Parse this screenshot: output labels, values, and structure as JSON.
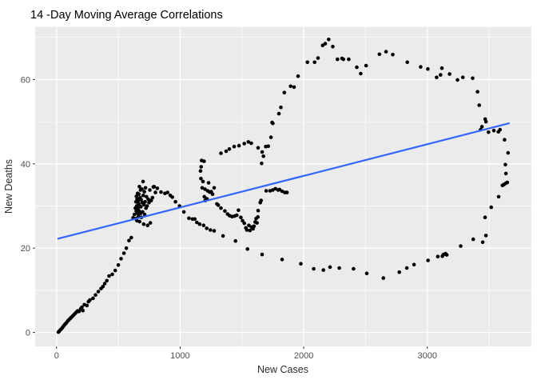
{
  "chart_data": {
    "type": "scatter",
    "title": "14 -Day Moving Average Correlations",
    "xlabel": "New Cases",
    "ylabel": "New Deaths",
    "x_ticks": [
      0,
      1000,
      2000,
      3000
    ],
    "x_tick_labels": [
      "0",
      "1000",
      "2000",
      "3000"
    ],
    "x_minor_ticks": [
      500,
      1500,
      2500,
      3500
    ],
    "y_ticks": [
      0,
      20,
      40,
      60
    ],
    "y_tick_labels": [
      "0",
      "20",
      "40",
      "60"
    ],
    "y_minor_ticks": [
      10,
      30,
      50,
      70
    ],
    "xlim": [
      -173,
      3842
    ],
    "ylim": [
      -3.3,
      72.5
    ],
    "grid": "on",
    "legend": "none",
    "colors": {
      "panel_bg": "#EBEBEB",
      "grid": "#FFFFFF",
      "point": "#000000",
      "trend_line": "#3366FF",
      "tick_label": "#4D4D4D",
      "axis_title": "#2B2B2B",
      "title": "#000000"
    },
    "trend": {
      "x": [
        13,
        3660
      ],
      "y": [
        22.25,
        49.6
      ]
    },
    "points": [
      [
        15,
        0.1
      ],
      [
        22,
        0.3
      ],
      [
        30,
        0.6
      ],
      [
        38,
        0.8
      ],
      [
        46,
        1.1
      ],
      [
        54,
        1.4
      ],
      [
        62,
        1.7
      ],
      [
        70,
        2.0
      ],
      [
        80,
        2.3
      ],
      [
        90,
        2.7
      ],
      [
        100,
        3.0
      ],
      [
        110,
        3.3
      ],
      [
        120,
        3.6
      ],
      [
        130,
        3.9
      ],
      [
        140,
        4.2
      ],
      [
        150,
        4.5
      ],
      [
        160,
        4.8
      ],
      [
        170,
        5.1
      ],
      [
        182,
        5.0
      ],
      [
        195,
        5.6
      ],
      [
        205,
        6.0
      ],
      [
        213,
        5.2
      ],
      [
        225,
        6.6
      ],
      [
        246,
        6.4
      ],
      [
        258,
        7.3
      ],
      [
        270,
        7.7
      ],
      [
        295,
        8.1
      ],
      [
        315,
        8.9
      ],
      [
        338,
        9.7
      ],
      [
        360,
        10.4
      ],
      [
        375,
        10.9
      ],
      [
        390,
        11.6
      ],
      [
        407,
        12.3
      ],
      [
        425,
        13.4
      ],
      [
        451,
        13.8
      ],
      [
        475,
        14.7
      ],
      [
        500,
        16.0
      ],
      [
        522,
        17.5
      ],
      [
        545,
        18.8
      ],
      [
        565,
        20.0
      ],
      [
        586,
        21.8
      ],
      [
        605,
        22.5
      ],
      [
        619,
        27.2
      ],
      [
        630,
        28.0
      ],
      [
        638,
        29.5
      ],
      [
        640,
        27.0
      ],
      [
        642,
        31.0
      ],
      [
        645,
        28.8
      ],
      [
        646,
        32.3
      ],
      [
        648,
        30.0
      ],
      [
        650,
        26.5
      ],
      [
        652,
        31.7
      ],
      [
        655,
        28.3
      ],
      [
        656,
        33.0
      ],
      [
        658,
        29.3
      ],
      [
        660,
        31.2
      ],
      [
        662,
        27.5
      ],
      [
        664,
        30.5
      ],
      [
        666,
        32.8
      ],
      [
        668,
        28.8
      ],
      [
        670,
        34.6
      ],
      [
        672,
        26.3
      ],
      [
        674,
        30.0
      ],
      [
        676,
        32.0
      ],
      [
        678,
        28.2
      ],
      [
        680,
        33.8
      ],
      [
        682,
        29.8
      ],
      [
        684,
        31.5
      ],
      [
        686,
        27.3
      ],
      [
        690,
        34.0
      ],
      [
        693,
        30.8
      ],
      [
        696,
        28.6
      ],
      [
        700,
        35.8
      ],
      [
        702,
        32.5
      ],
      [
        705,
        25.7
      ],
      [
        707,
        30.3
      ],
      [
        710,
        33.4
      ],
      [
        713,
        28.0
      ],
      [
        716,
        31.0
      ],
      [
        720,
        34.3
      ],
      [
        724,
        29.5
      ],
      [
        728,
        32.2
      ],
      [
        733,
        30.0
      ],
      [
        737,
        25.4
      ],
      [
        742,
        31.6
      ],
      [
        748,
        30.8
      ],
      [
        755,
        33.8
      ],
      [
        759,
        26.0
      ],
      [
        766,
        31.3
      ],
      [
        776,
        32.0
      ],
      [
        783,
        34.5
      ],
      [
        789,
        34.6
      ],
      [
        800,
        33.2
      ],
      [
        815,
        34.2
      ],
      [
        845,
        33.3
      ],
      [
        877,
        33.0
      ],
      [
        898,
        33.2
      ],
      [
        920,
        32.5
      ],
      [
        937,
        32.1
      ],
      [
        962,
        31.0
      ],
      [
        995,
        30.0
      ],
      [
        1030,
        28.6
      ],
      [
        1071,
        27.1
      ],
      [
        1100,
        26.9
      ],
      [
        1118,
        26.9
      ],
      [
        1135,
        26.1
      ],
      [
        1158,
        25.7
      ],
      [
        1190,
        25.4
      ],
      [
        1215,
        24.7
      ],
      [
        1245,
        24.3
      ],
      [
        1275,
        24.1
      ],
      [
        1168,
        36.5
      ],
      [
        1178,
        34.3
      ],
      [
        1185,
        35.8
      ],
      [
        1196,
        32.2
      ],
      [
        1200,
        34.0
      ],
      [
        1203,
        31.3
      ],
      [
        1217,
        31.7
      ],
      [
        1222,
        33.6
      ],
      [
        1230,
        35.5
      ],
      [
        1239,
        33.3
      ],
      [
        1252,
        33.4
      ],
      [
        1262,
        32.8
      ],
      [
        1275,
        34.3
      ],
      [
        1297,
        30.5
      ],
      [
        1165,
        38.3
      ],
      [
        1170,
        39.3
      ],
      [
        1174,
        40.8
      ],
      [
        1194,
        40.6
      ],
      [
        1330,
        42.5
      ],
      [
        1372,
        43.0
      ],
      [
        1398,
        43.5
      ],
      [
        1437,
        44.1
      ],
      [
        1476,
        44.3
      ],
      [
        1519,
        44.8
      ],
      [
        1552,
        45.2
      ],
      [
        1576,
        44.9
      ],
      [
        1631,
        43.8
      ],
      [
        1659,
        40.1
      ],
      [
        1664,
        42.8
      ],
      [
        1674,
        41.8
      ],
      [
        1692,
        44.1
      ],
      [
        1713,
        44.2
      ],
      [
        1735,
        46.3
      ],
      [
        1744,
        49.8
      ],
      [
        1750,
        49.6
      ],
      [
        1799,
        51.9
      ],
      [
        1815,
        53.4
      ],
      [
        1843,
        56.9
      ],
      [
        1894,
        58.4
      ],
      [
        1922,
        58.2
      ],
      [
        1954,
        60.8
      ],
      [
        2030,
        64.1
      ],
      [
        2088,
        64.1
      ],
      [
        2116,
        65.1
      ],
      [
        2153,
        68.1
      ],
      [
        2174,
        68.5
      ],
      [
        2202,
        69.5
      ],
      [
        2235,
        67.8
      ],
      [
        2273,
        64.8
      ],
      [
        2310,
        65.0
      ],
      [
        2321,
        64.8
      ],
      [
        2364,
        64.8
      ],
      [
        2429,
        62.9
      ],
      [
        2461,
        61.4
      ],
      [
        2504,
        63.3
      ],
      [
        2612,
        66.0
      ],
      [
        2666,
        66.6
      ],
      [
        2720,
        65.9
      ],
      [
        2838,
        64.1
      ],
      [
        2946,
        63.0
      ],
      [
        3004,
        62.5
      ],
      [
        3075,
        60.5
      ],
      [
        3107,
        61.1
      ],
      [
        3118,
        62.7
      ],
      [
        3180,
        61.3
      ],
      [
        3244,
        59.9
      ],
      [
        3287,
        60.5
      ],
      [
        3367,
        60.3
      ],
      [
        3406,
        57.1
      ],
      [
        3420,
        53.9
      ],
      [
        3431,
        48.1
      ],
      [
        3442,
        48.8
      ],
      [
        3468,
        50.6
      ],
      [
        3474,
        50.0
      ],
      [
        3495,
        47.5
      ],
      [
        3538,
        47.9
      ],
      [
        3575,
        47.6
      ],
      [
        3588,
        48.1
      ],
      [
        3625,
        45.7
      ],
      [
        3653,
        42.6
      ],
      [
        3631,
        39.8
      ],
      [
        3636,
        37.7
      ],
      [
        3608,
        34.9
      ],
      [
        3620,
        35.1
      ],
      [
        3636,
        35.4
      ],
      [
        3647,
        35.6
      ],
      [
        3577,
        32.2
      ],
      [
        3517,
        29.7
      ],
      [
        3467,
        27.3
      ],
      [
        3474,
        23.0
      ],
      [
        3448,
        21.4
      ],
      [
        3371,
        22.1
      ],
      [
        3270,
        20.5
      ],
      [
        3157,
        18.4
      ],
      [
        3147,
        18.7
      ],
      [
        3130,
        18.5
      ],
      [
        3122,
        18.1
      ],
      [
        3085,
        18.0
      ],
      [
        3006,
        17.1
      ],
      [
        2892,
        16.1
      ],
      [
        2834,
        15.3
      ],
      [
        2773,
        14.3
      ],
      [
        2644,
        12.9
      ],
      [
        2510,
        14.0
      ],
      [
        2403,
        15.1
      ],
      [
        2288,
        15.3
      ],
      [
        2213,
        15.5
      ],
      [
        2159,
        14.8
      ],
      [
        2080,
        15.1
      ],
      [
        1976,
        16.3
      ],
      [
        1825,
        17.3
      ],
      [
        1663,
        18.5
      ],
      [
        1545,
        19.8
      ],
      [
        1448,
        21.7
      ],
      [
        1347,
        22.9
      ],
      [
        1308,
        30.2
      ],
      [
        1330,
        29.5
      ],
      [
        1362,
        28.8
      ],
      [
        1383,
        28.1
      ],
      [
        1400,
        27.7
      ],
      [
        1420,
        27.5
      ],
      [
        1440,
        27.6
      ],
      [
        1458,
        27.8
      ],
      [
        1472,
        29.0
      ],
      [
        1491,
        27.3
      ],
      [
        1505,
        26.5
      ],
      [
        1519,
        25.9
      ],
      [
        1532,
        24.8
      ],
      [
        1540,
        24.3
      ],
      [
        1556,
        25.4
      ],
      [
        1565,
        24.2
      ],
      [
        1577,
        25.0
      ],
      [
        1590,
        24.6
      ],
      [
        1598,
        25.2
      ],
      [
        1607,
        26.2
      ],
      [
        1615,
        27.0
      ],
      [
        1622,
        26.0
      ],
      [
        1629,
        27.4
      ],
      [
        1631,
        28.9
      ],
      [
        1648,
        30.8
      ],
      [
        1655,
        31.3
      ],
      [
        1696,
        33.6
      ],
      [
        1728,
        33.6
      ],
      [
        1750,
        33.8
      ],
      [
        1771,
        34.1
      ],
      [
        1793,
        33.8
      ],
      [
        1804,
        33.9
      ],
      [
        1825,
        33.5
      ],
      [
        1847,
        33.2
      ],
      [
        1864,
        33.2
      ]
    ]
  },
  "layout_note": ""
}
